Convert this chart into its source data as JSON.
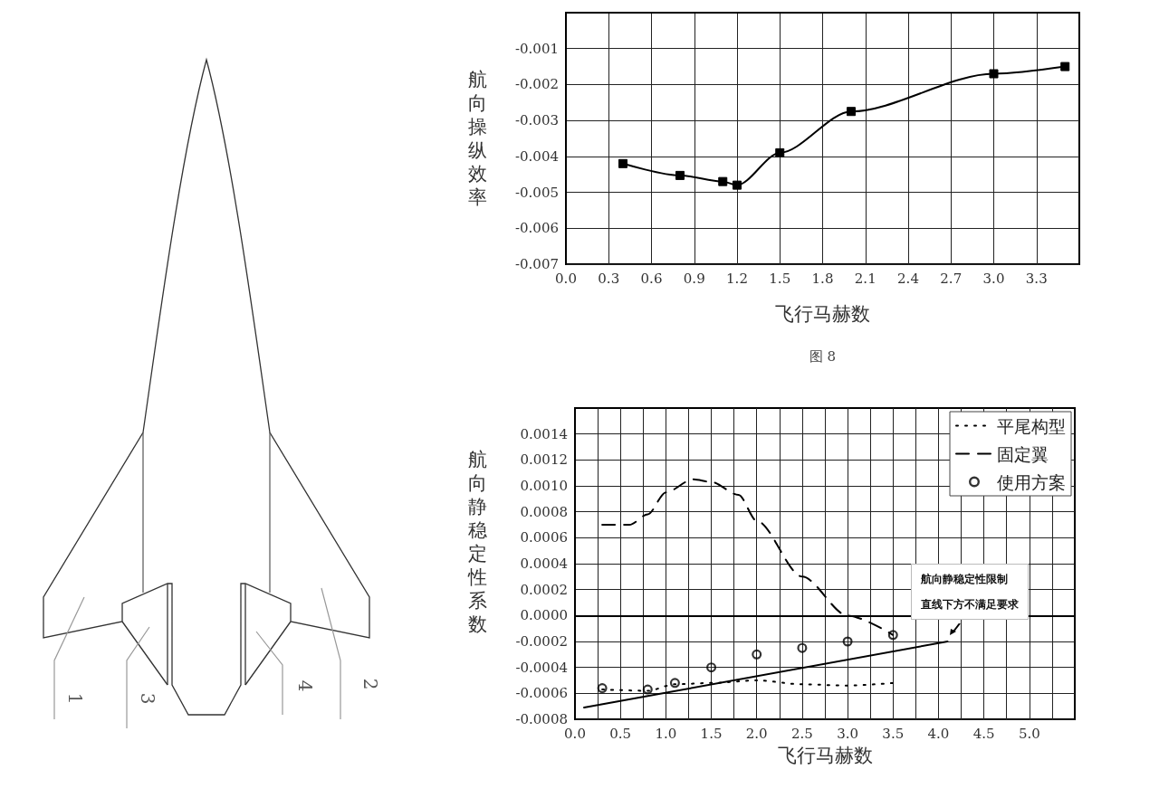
{
  "chart_data": [
    {
      "type": "line",
      "xlabel": "飞行马赫数",
      "ylabel": "航向操纵效率",
      "annotations": [
        "图 8"
      ],
      "x": [
        0.4,
        0.8,
        1.1,
        1.2,
        1.5,
        2.0,
        3.0,
        3.5
      ],
      "values": [
        -0.0042,
        -0.00453,
        -0.0047,
        -0.0048,
        -0.0039,
        -0.00275,
        -0.0017,
        -0.0015
      ],
      "color": "#000000",
      "marker": "square",
      "line_style": "solid",
      "xlim": [
        0,
        3.6
      ],
      "xticks": [
        {
          "value": 0,
          "label": "0.0"
        },
        0.3,
        0.6,
        0.9,
        1.2,
        1.5,
        1.8,
        2.1,
        2.4,
        2.7,
        {
          "value": 3,
          "label": "3.0"
        },
        3.3
      ],
      "ylim": [
        -0.007,
        0
      ],
      "yticks": [
        -0.007,
        -0.006,
        -0.005,
        -0.004,
        -0.003,
        -0.002,
        -0.001
      ],
      "grid": true
    },
    {
      "type": "line",
      "xlabel": "飞行马赫数",
      "ylabel": "航向静稳定性系数",
      "annotations": [
        "航向静稳定性限制",
        "直线下方不满足要求"
      ],
      "series": [
        {
          "name": "平尾构型",
          "type": "line",
          "color": "#000000",
          "line_style": "dotted",
          "marker": "none",
          "x": [
            0.3,
            0.8,
            1.1,
            1.5,
            2.0,
            2.5,
            3.0,
            3.5
          ],
          "values": [
            -0.00057,
            -0.00058,
            -0.00053,
            -0.00052,
            -0.0005,
            -0.00053,
            -0.00054,
            -0.00052
          ]
        },
        {
          "name": "固定翼",
          "type": "line",
          "color": "#000000",
          "line_style": "dashed",
          "marker": "none",
          "x": [
            0.3,
            0.6,
            0.8,
            1.0,
            1.3,
            1.5,
            1.8,
            2.0,
            2.5,
            3.0,
            3.5
          ],
          "values": [
            0.0007,
            0.0007,
            0.00078,
            0.00095,
            0.00105,
            0.00103,
            0.00093,
            0.00073,
            0.0003,
            0.0,
            -0.00015
          ]
        },
        {
          "name": "使用方案",
          "type": "scatter",
          "color": "#000000",
          "marker": "circle",
          "x": [
            0.3,
            0.8,
            1.1,
            1.5,
            2.0,
            2.5,
            3.0,
            3.5
          ],
          "values": [
            -0.00056,
            -0.00057,
            -0.00052,
            -0.0004,
            -0.0003,
            -0.00025,
            -0.0002,
            -0.00015
          ]
        },
        {
          "type": "line",
          "color": "#000000",
          "line_style": "solid",
          "marker": "none",
          "x": [
            0.1,
            4.1
          ],
          "values": [
            -0.00071,
            -0.0002
          ]
        }
      ],
      "xlim": [
        0,
        5.5
      ],
      "xticks": [
        {
          "value": 0,
          "label": "0.0"
        },
        {
          "value": 0.25,
          "label": null
        },
        0.5,
        {
          "value": 0.75,
          "label": null
        },
        {
          "value": 1,
          "label": "1.0"
        },
        {
          "value": 1.25,
          "label": null
        },
        1.5,
        {
          "value": 1.75,
          "label": null
        },
        {
          "value": 2,
          "label": "2.0"
        },
        {
          "value": 2.25,
          "label": null
        },
        2.5,
        {
          "value": 2.75,
          "label": null
        },
        {
          "value": 3,
          "label": "3.0"
        },
        {
          "value": 3.25,
          "label": null
        },
        3.5,
        {
          "value": 3.75,
          "label": null
        },
        {
          "value": 4,
          "label": "4.0"
        },
        {
          "value": 4.25,
          "label": null
        },
        4.5,
        {
          "value": 4.75,
          "label": null
        },
        {
          "value": 5,
          "label": "5.0"
        },
        {
          "value": 5.25,
          "label": null
        }
      ],
      "ylim": [
        -0.0008,
        0.0016
      ],
      "yticks": [
        -0.0008,
        -0.0006,
        -0.0004,
        -0.0002,
        {
          "value": 0,
          "label": "0.0000"
        },
        0.0002,
        0.0004,
        0.0006,
        0.0008,
        {
          "value": 0.001,
          "label": "0.0010"
        },
        0.0012,
        0.0014
      ],
      "grid": true,
      "legend": "top right"
    },
    {
      "type": "other",
      "annotations": [
        "1",
        "2",
        "3",
        "4"
      ]
    }
  ]
}
